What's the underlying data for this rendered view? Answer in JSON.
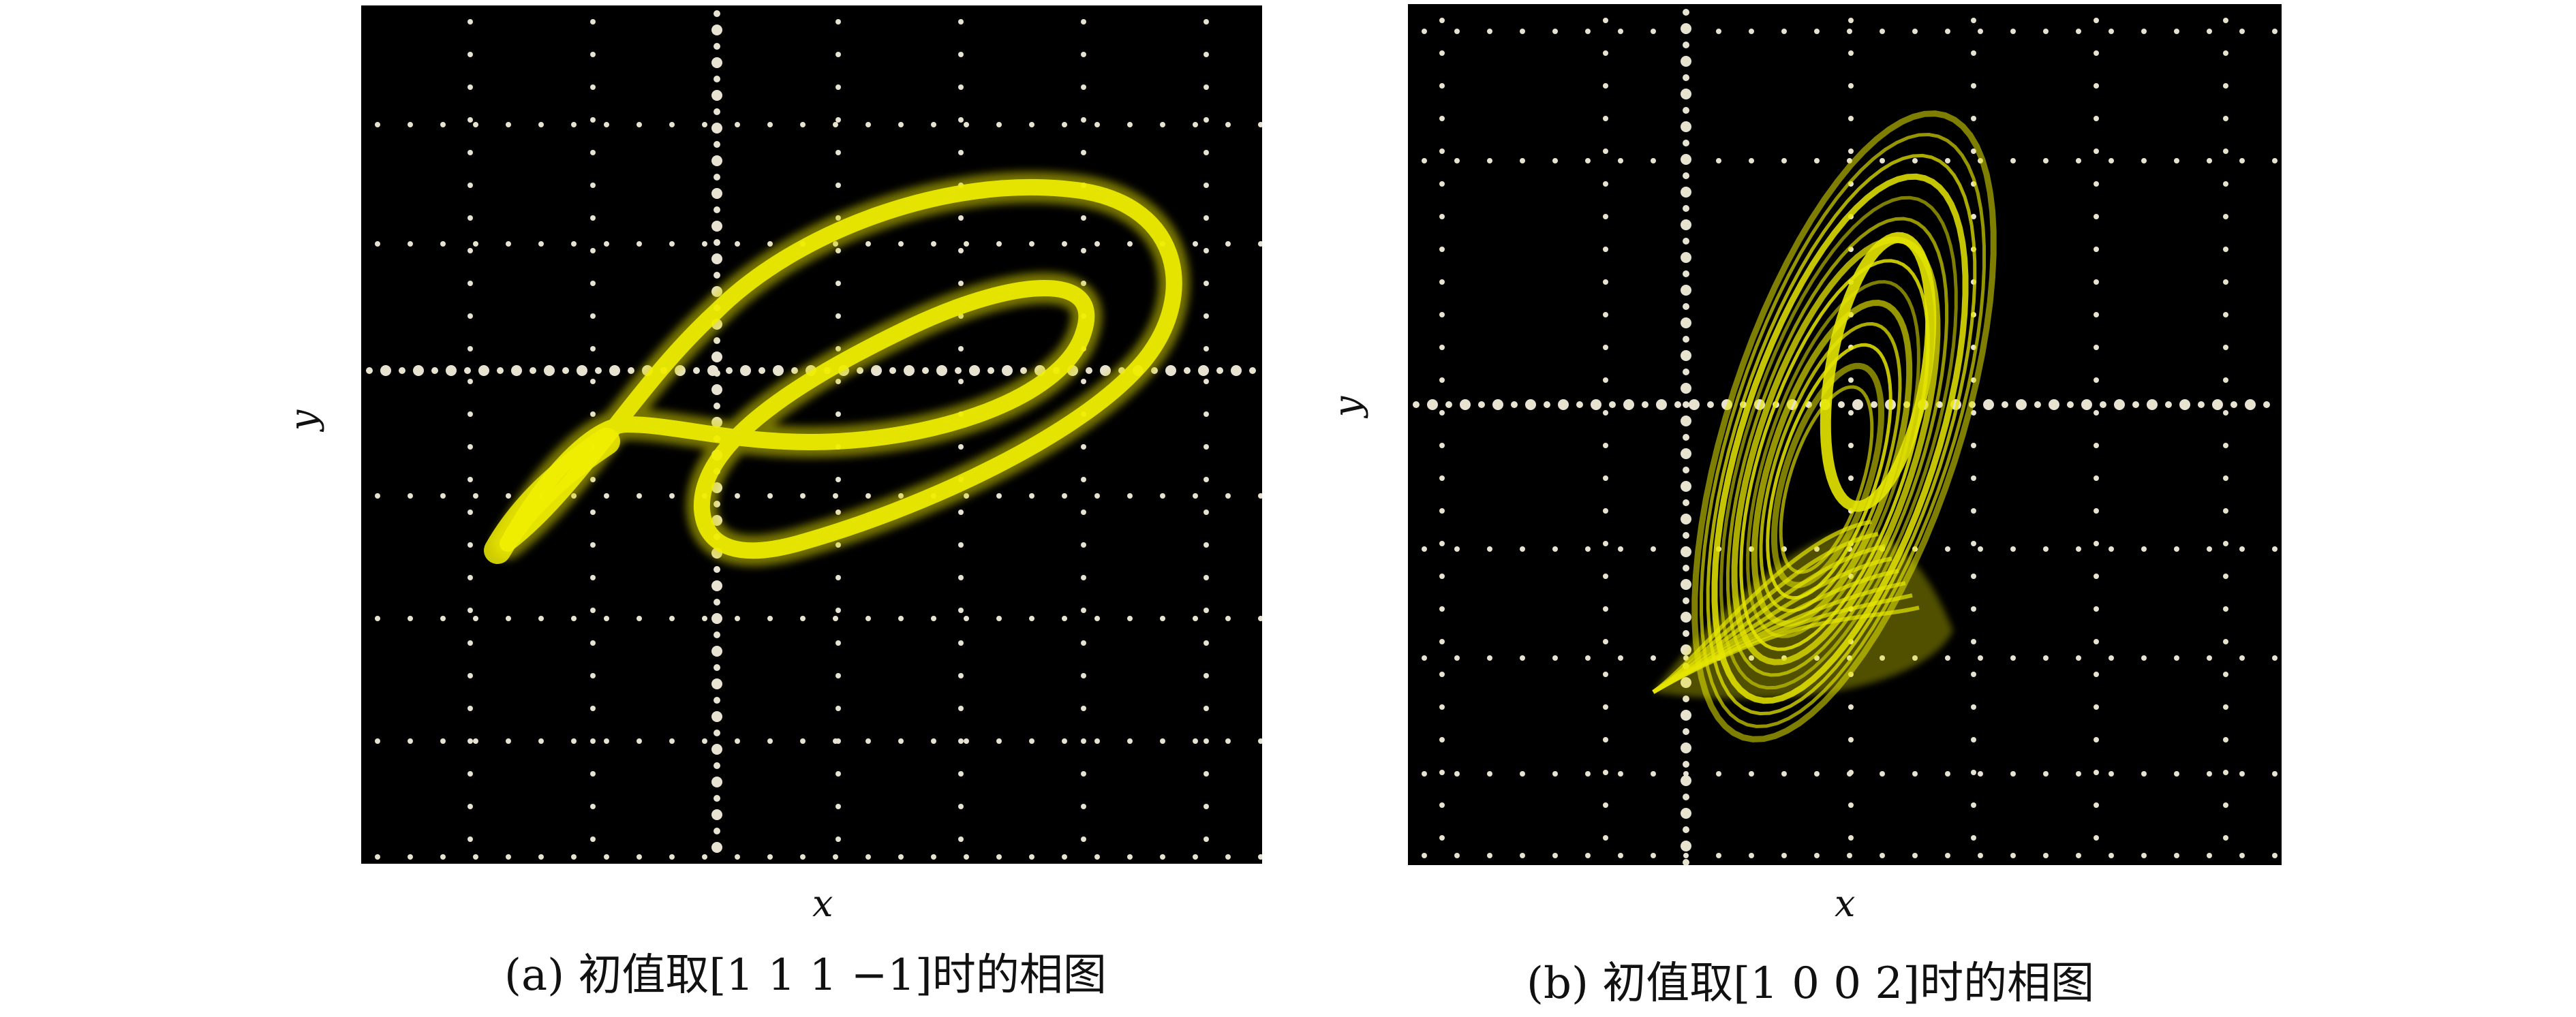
{
  "colors": {
    "screen_background": "#000000",
    "trace": "#e6e600",
    "grid_dots": "#e8e2d0"
  },
  "panels": [
    {
      "id": "a",
      "caption": "(a) 初值取[1 1 1 −1]时的相图",
      "xlabel": "x",
      "ylabel": "y"
    },
    {
      "id": "b",
      "caption": "(b) 初值取[1 0 0 2]时的相图",
      "xlabel": "x",
      "ylabel": "y"
    }
  ]
}
